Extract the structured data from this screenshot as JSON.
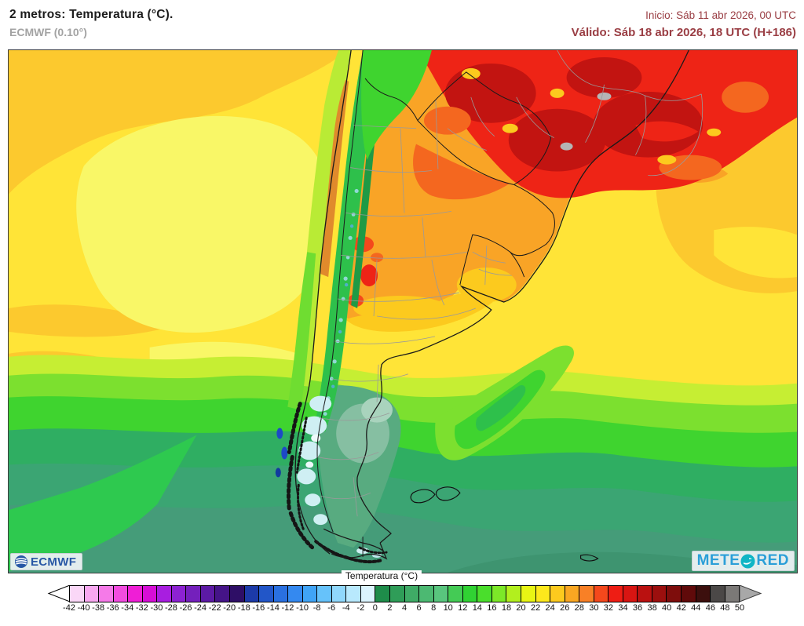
{
  "header": {
    "title": "2 metros: Temperatura (°C).",
    "model": "ECMWF (0.10°)",
    "init": "Inicio: Sáb 11 abr 2026, 00 UTC",
    "valid": "Válido: Sáb 18 abr 2026, 18 UTC (H+186)",
    "dates_color": "#9a3e44"
  },
  "logos": {
    "ecmwf": "ECMWF",
    "meteored_part1": "METE",
    "meteored_part2": "RED",
    "ecmwf_blue": "#2757a5",
    "meteored_blue": "#2b9fd8",
    "meteored_teal": "#10b5c5"
  },
  "legend": {
    "title": "Temperatura (°C)",
    "unit": "°C",
    "min": -42,
    "max": 50,
    "step": 2,
    "tick_labels": [
      "-42",
      "-40",
      "-38",
      "-36",
      "-34",
      "-32",
      "-30",
      "-28",
      "-26",
      "-24",
      "-22",
      "-20",
      "-18",
      "-16",
      "-14",
      "-12",
      "-10",
      "-8",
      "-6",
      "-4",
      "-2",
      "0",
      "2",
      "4",
      "6",
      "8",
      "10",
      "12",
      "14",
      "16",
      "18",
      "20",
      "22",
      "24",
      "26",
      "28",
      "30",
      "32",
      "34",
      "36",
      "38",
      "40",
      "42",
      "44",
      "46",
      "48",
      "50"
    ],
    "colors": [
      "#fad7f7",
      "#f8a8f0",
      "#f57ae8",
      "#f24cdf",
      "#ef1ed6",
      "#d60ed6",
      "#a81ee0",
      "#8c22d2",
      "#7420bc",
      "#5c1aa4",
      "#451488",
      "#2e0e66",
      "#1c3aa8",
      "#2256c8",
      "#2a70e0",
      "#3489f0",
      "#40a4f6",
      "#66c2fa",
      "#90d8fc",
      "#b8e9fd",
      "#dbf4fe",
      "#1e8c4a",
      "#2f9d58",
      "#3fab66",
      "#4cb972",
      "#59c57e",
      "#44cb55",
      "#30d233",
      "#4ade2c",
      "#7ce828",
      "#b2ef1e",
      "#e8f514",
      "#fde81c",
      "#fcca1e",
      "#faa722",
      "#f88026",
      "#f4481c",
      "#ee1d14",
      "#d81512",
      "#ba1110",
      "#9c0f0e",
      "#7e0d0c",
      "#600a0a",
      "#3c0f0d",
      "#4b4847",
      "#7b7977"
    ],
    "left_arrow_color": "#ffffff",
    "right_arrow_color": "#a8a8a8"
  }
}
